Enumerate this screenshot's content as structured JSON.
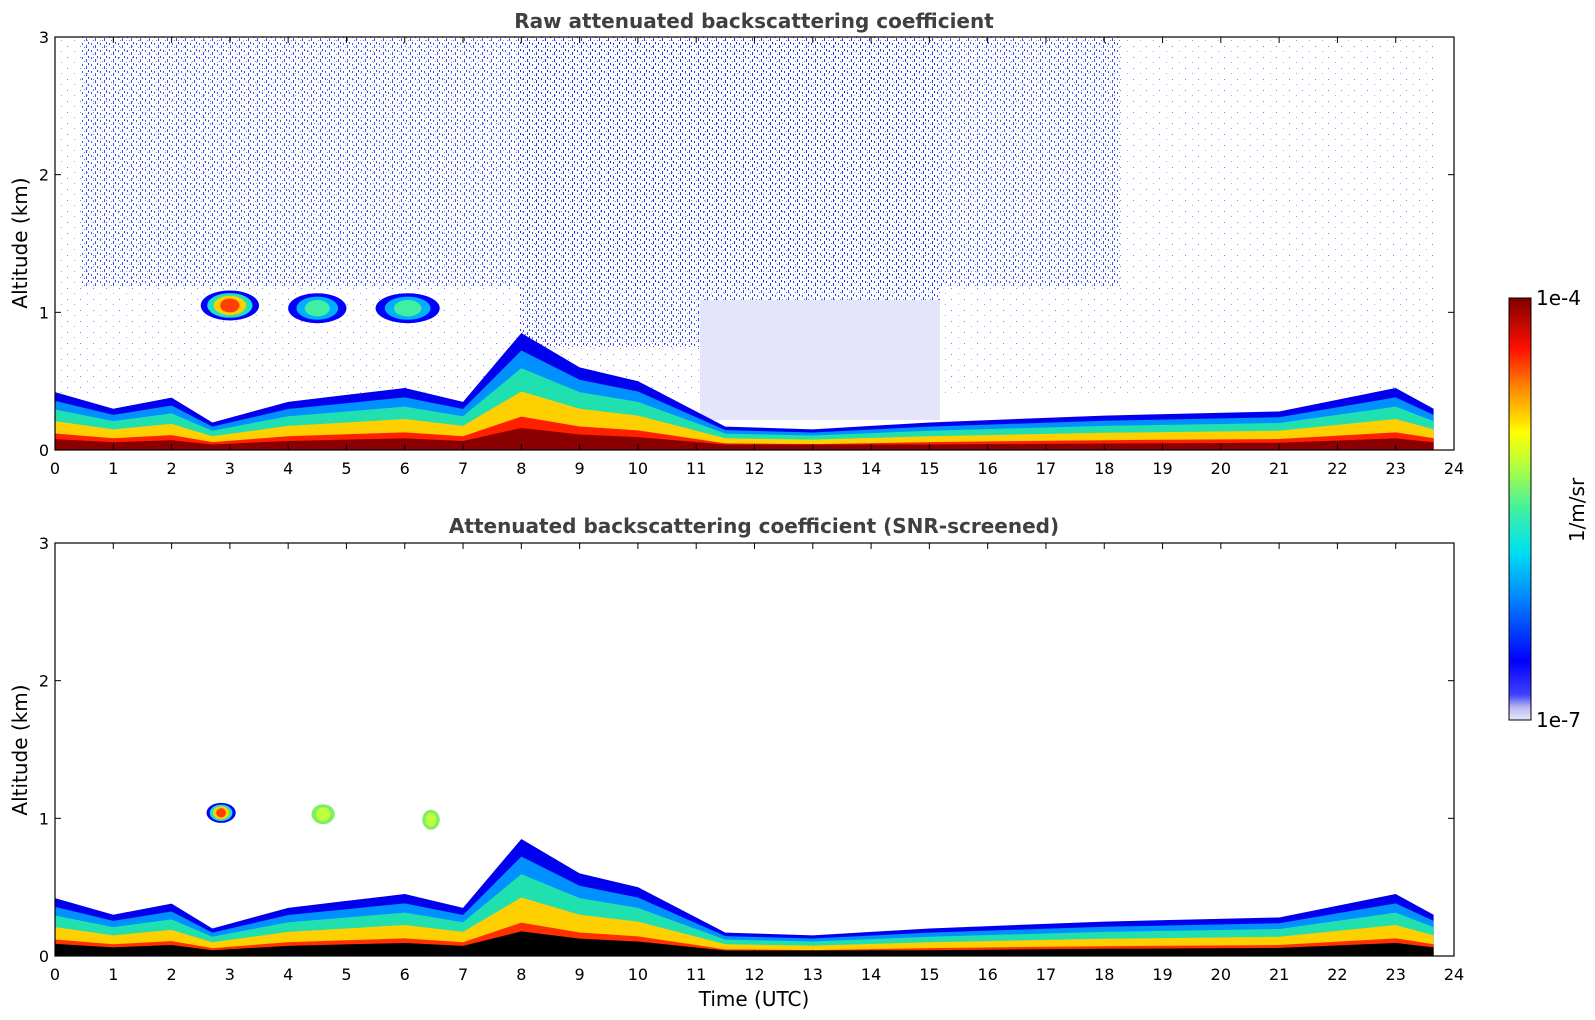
{
  "chart_data": [
    {
      "type": "heatmap",
      "title": "Raw attenuated backscattering coefficient",
      "xlabel": "",
      "ylabel": "Altitude (km)",
      "xlim": [
        0,
        24
      ],
      "ylim": [
        0,
        3
      ],
      "x_ticks": [
        "0",
        "1",
        "2",
        "3",
        "4",
        "5",
        "6",
        "7",
        "8",
        "9",
        "10",
        "11",
        "12",
        "13",
        "14",
        "15",
        "16",
        "17",
        "18",
        "19",
        "20",
        "21",
        "22",
        "23",
        "24"
      ],
      "y_ticks": [
        "0",
        "1",
        "2",
        "3"
      ],
      "data_end_hour": 23.65,
      "boundary_layer_top_km": [
        {
          "t": 0,
          "h": 0.42
        },
        {
          "t": 1,
          "h": 0.3
        },
        {
          "t": 2,
          "h": 0.38
        },
        {
          "t": 2.7,
          "h": 0.2
        },
        {
          "t": 4,
          "h": 0.35
        },
        {
          "t": 5,
          "h": 0.4
        },
        {
          "t": 6,
          "h": 0.45
        },
        {
          "t": 7,
          "h": 0.35
        },
        {
          "t": 8,
          "h": 0.85
        },
        {
          "t": 9,
          "h": 0.6
        },
        {
          "t": 10,
          "h": 0.5
        },
        {
          "t": 11.5,
          "h": 0.17
        },
        {
          "t": 13,
          "h": 0.15
        },
        {
          "t": 15,
          "h": 0.2
        },
        {
          "t": 18,
          "h": 0.25
        },
        {
          "t": 21,
          "h": 0.28
        },
        {
          "t": 23,
          "h": 0.45
        },
        {
          "t": 23.65,
          "h": 0.3
        }
      ],
      "elevated_layers": [
        {
          "t_start": 2.5,
          "t_end": 3.5,
          "h_km": 1.05,
          "peak": "high"
        },
        {
          "t_start": 4.0,
          "t_end": 5.0,
          "h_km": 1.03,
          "peak": "medium"
        },
        {
          "t_start": 5.5,
          "t_end": 6.6,
          "h_km": 1.03,
          "peak": "medium"
        }
      ]
    },
    {
      "type": "heatmap",
      "title": "Attenuated backscattering coefficient (SNR-screened)",
      "xlabel": "Time (UTC)",
      "ylabel": "Altitude (km)",
      "xlim": [
        0,
        24
      ],
      "ylim": [
        0,
        3
      ],
      "x_ticks": [
        "0",
        "1",
        "2",
        "3",
        "4",
        "5",
        "6",
        "7",
        "8",
        "9",
        "10",
        "11",
        "12",
        "13",
        "14",
        "15",
        "16",
        "17",
        "18",
        "19",
        "20",
        "21",
        "22",
        "23",
        "24"
      ],
      "y_ticks": [
        "0",
        "1",
        "2",
        "3"
      ],
      "data_end_hour": 23.65,
      "elevated_layers": [
        {
          "t_start": 2.6,
          "t_end": 3.1,
          "h_km": 1.04,
          "peak": "high"
        },
        {
          "t_start": 4.4,
          "t_end": 4.8,
          "h_km": 1.03,
          "peak": "low"
        },
        {
          "t_start": 6.3,
          "t_end": 6.6,
          "h_km": 0.99,
          "peak": "low"
        }
      ]
    }
  ],
  "colorbar": {
    "label": "1/m/sr",
    "max_label": "1e-4",
    "min_label": "1e-7",
    "colormap": "jet",
    "colors": [
      "#e6e6fa",
      "#0000ff",
      "#00c8ff",
      "#20e0a0",
      "#a0ff60",
      "#ffff00",
      "#ff8000",
      "#ff0000",
      "#800000"
    ]
  }
}
